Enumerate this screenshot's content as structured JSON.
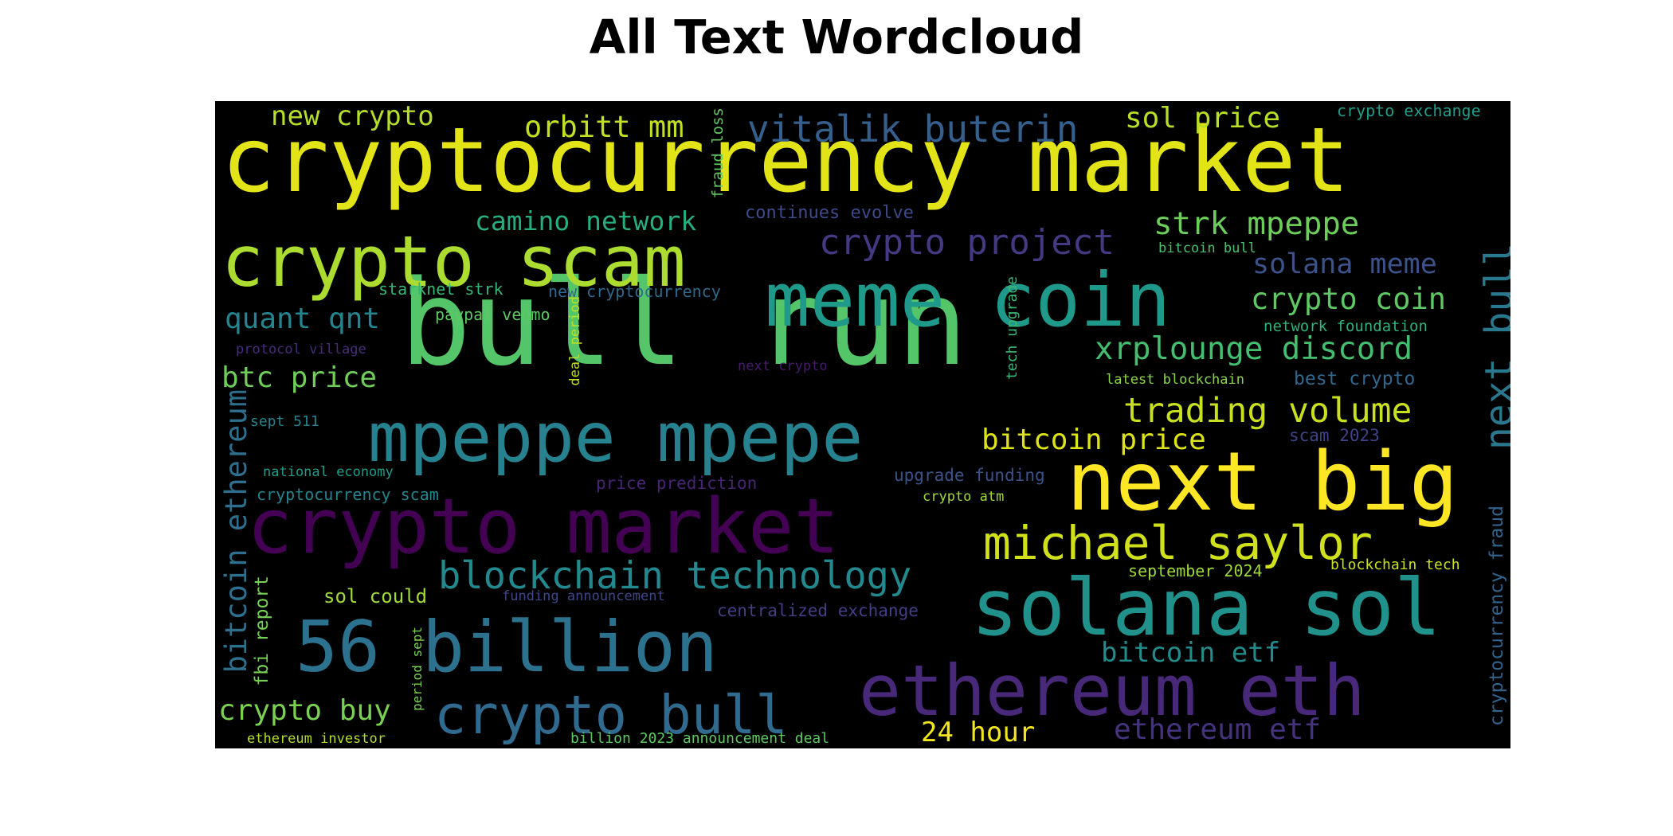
{
  "title": "All Text Wordcloud",
  "words": [
    {
      "text": "cryptocurrency market",
      "color": "#e2e418"
    },
    {
      "text": "bull run",
      "color": "#54c568"
    },
    {
      "text": "crypto scam",
      "color": "#addc30"
    },
    {
      "text": "meme coin",
      "color": "#1f9a8a"
    },
    {
      "text": "mpeppe mpepe",
      "color": "#26828e"
    },
    {
      "text": "crypto market",
      "color": "#440154"
    },
    {
      "text": "next big",
      "color": "#fde725"
    },
    {
      "text": "solana sol",
      "color": "#21918c"
    },
    {
      "text": "ethereum eth",
      "color": "#482878"
    },
    {
      "text": "56 billion",
      "color": "#2c728e"
    },
    {
      "text": "crypto bull",
      "color": "#306a8e"
    },
    {
      "text": "michael saylor",
      "color": "#d0e11c"
    },
    {
      "text": "blockchain technology",
      "color": "#23898e"
    },
    {
      "text": "vitalik buterin",
      "color": "#355f8d"
    },
    {
      "text": "crypto project",
      "color": "#443983"
    },
    {
      "text": "new crypto",
      "color": "#b5de2b"
    },
    {
      "text": "orbitt mm",
      "color": "#c2df23"
    },
    {
      "text": "sol price",
      "color": "#b8de29"
    },
    {
      "text": "crypto exchange",
      "color": "#1f9e89"
    },
    {
      "text": "fraud loss",
      "color": "#5ec962"
    },
    {
      "text": "camino network",
      "color": "#27ad81"
    },
    {
      "text": "continues evolve",
      "color": "#3e4a89"
    },
    {
      "text": "strk mpeppe",
      "color": "#6ccd5a"
    },
    {
      "text": "bitcoin bull",
      "color": "#4ac16d"
    },
    {
      "text": "solana meme",
      "color": "#3b528b"
    },
    {
      "text": "next bull",
      "color": "#2a788e"
    },
    {
      "text": "starknet strk",
      "color": "#35b779"
    },
    {
      "text": "new cryptocurrency",
      "color": "#31688e"
    },
    {
      "text": "crypto coin",
      "color": "#5ec962"
    },
    {
      "text": "quant qnt",
      "color": "#25858e"
    },
    {
      "text": "paypal venmo",
      "color": "#5cc863"
    },
    {
      "text": "deal period",
      "color": "#bddf26"
    },
    {
      "text": "tech upgrade",
      "color": "#3aba76"
    },
    {
      "text": "network foundation",
      "color": "#2db27d"
    },
    {
      "text": "protocol village",
      "color": "#472c7a"
    },
    {
      "text": "xrplounge discord",
      "color": "#44bf70"
    },
    {
      "text": "btc price",
      "color": "#6ece58"
    },
    {
      "text": "next crypto",
      "color": "#481a6c"
    },
    {
      "text": "latest blockchain",
      "color": "#8bd646"
    },
    {
      "text": "best crypto",
      "color": "#31688e"
    },
    {
      "text": "trading volume",
      "color": "#c8e020"
    },
    {
      "text": "bitcoin ethereum",
      "color": "#2e6f8e"
    },
    {
      "text": "sept 511",
      "color": "#26828e"
    },
    {
      "text": "bitcoin price",
      "color": "#dde318"
    },
    {
      "text": "scam 2023",
      "color": "#404387"
    },
    {
      "text": "national economy",
      "color": "#1e9b8a"
    },
    {
      "text": "upgrade funding",
      "color": "#3b528b"
    },
    {
      "text": "cryptocurrency scam",
      "color": "#25848e"
    },
    {
      "text": "price prediction",
      "color": "#482475"
    },
    {
      "text": "crypto atm",
      "color": "#a0da39"
    },
    {
      "text": "cryptocurrency fraud",
      "color": "#33638d"
    },
    {
      "text": "september 2024",
      "color": "#9dd93b"
    },
    {
      "text": "blockchain tech",
      "color": "#cae11f"
    },
    {
      "text": "bitcoin etf",
      "color": "#228c8d"
    },
    {
      "text": "sol could",
      "color": "#a2da37"
    },
    {
      "text": "funding announcement",
      "color": "#3f4788"
    },
    {
      "text": "centralized exchange",
      "color": "#433e85"
    },
    {
      "text": "fbi report",
      "color": "#75d054"
    },
    {
      "text": "period sept",
      "color": "#7ad151"
    },
    {
      "text": "crypto buy",
      "color": "#7ad151"
    },
    {
      "text": "ethereum investor",
      "color": "#b2dd2d"
    },
    {
      "text": "billion 2023 announcement deal",
      "color": "#5ec962"
    },
    {
      "text": "24 hour",
      "color": "#f1e51d"
    },
    {
      "text": "ethereum etf",
      "color": "#46337f"
    }
  ]
}
